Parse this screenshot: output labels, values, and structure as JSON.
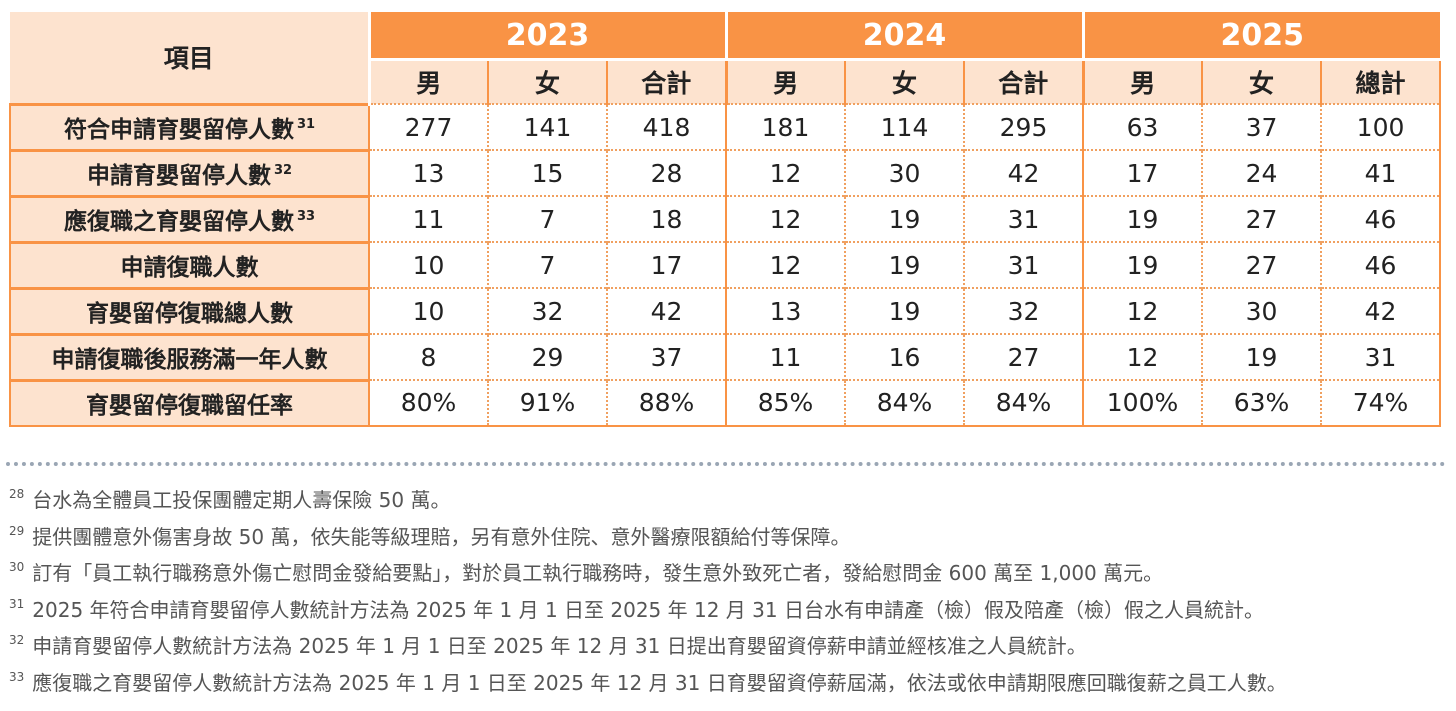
{
  "table": {
    "item_header": "項目",
    "years": [
      "2023",
      "2024",
      "2025"
    ],
    "subheaders": [
      "男",
      "女",
      "合計",
      "男",
      "女",
      "合計",
      "男",
      "女",
      "總計"
    ],
    "rows": [
      {
        "label": "符合申請育嬰留停人數",
        "ref": "31",
        "values": [
          "277",
          "141",
          "418",
          "181",
          "114",
          "295",
          "63",
          "37",
          "100"
        ]
      },
      {
        "label": "申請育嬰留停人數",
        "ref": "32",
        "values": [
          "13",
          "15",
          "28",
          "12",
          "30",
          "42",
          "17",
          "24",
          "41"
        ]
      },
      {
        "label": "應復職之育嬰留停人數",
        "ref": "33",
        "values": [
          "11",
          "7",
          "18",
          "12",
          "19",
          "31",
          "19",
          "27",
          "46"
        ]
      },
      {
        "label": "申請復職人數",
        "ref": "",
        "values": [
          "10",
          "7",
          "17",
          "12",
          "19",
          "31",
          "19",
          "27",
          "46"
        ]
      },
      {
        "label": "育嬰留停復職總人數",
        "ref": "",
        "values": [
          "10",
          "32",
          "42",
          "13",
          "19",
          "32",
          "12",
          "30",
          "42"
        ]
      },
      {
        "label": "申請復職後服務滿一年人數",
        "ref": "",
        "values": [
          "8",
          "29",
          "37",
          "11",
          "16",
          "27",
          "12",
          "19",
          "31"
        ]
      },
      {
        "label": "育嬰留停復職留任率",
        "ref": "",
        "values": [
          "80%",
          "91%",
          "88%",
          "85%",
          "84%",
          "84%",
          "100%",
          "63%",
          "74%"
        ]
      }
    ]
  },
  "footnotes": [
    {
      "num": "28",
      "text": "台水為全體員工投保團體定期人壽保險 50 萬。"
    },
    {
      "num": "29",
      "text": "提供團體意外傷害身故 50 萬，依失能等級理賠，另有意外住院、意外醫療限額給付等保障。"
    },
    {
      "num": "30",
      "text": "訂有「員工執行職務意外傷亡慰問金發給要點」，對於員工執行職務時，發生意外致死亡者，發給慰問金 600 萬至 1,000 萬元。"
    },
    {
      "num": "31",
      "text": "2025 年符合申請育嬰留停人數統計方法為 2025 年 1 月 1 日至 2025 年 12 月 31 日台水有申請產（檢）假及陪產（檢）假之人員統計。"
    },
    {
      "num": "32",
      "text": "申請育嬰留停人數統計方法為 2025 年 1 月 1 日至 2025 年 12 月 31 日提出育嬰留資停薪申請並經核准之人員統計。"
    },
    {
      "num": "33",
      "text": "應復職之育嬰留停人數統計方法為 2025 年 1 月 1 日至 2025 年 12 月 31 日育嬰留資停薪屆滿，依法或依申請期限應回職復薪之員工人數。"
    }
  ],
  "colors": {
    "header_orange": "#f99345",
    "label_peach": "#fde3cf"
  }
}
